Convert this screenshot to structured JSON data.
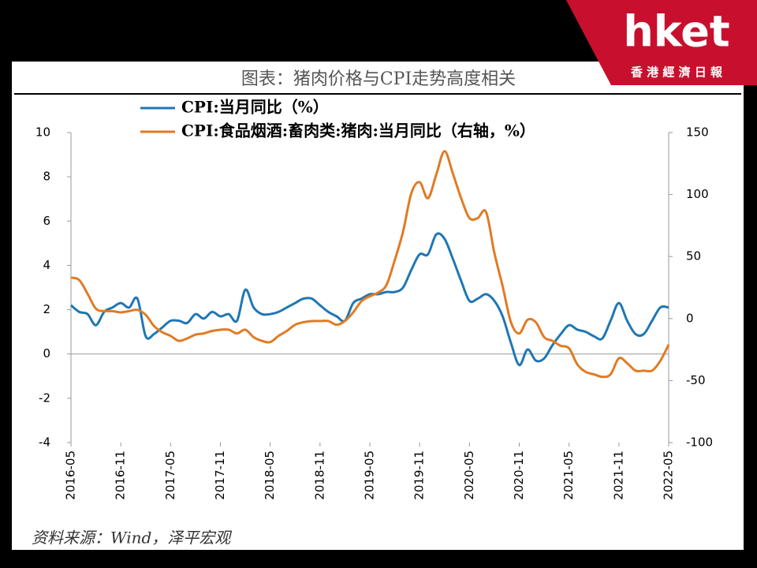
{
  "chart_data": {
    "type": "line",
    "title": "图表：猪肉价格与CPI走势高度相关",
    "source": "资料来源：Wind，泽平宏观",
    "logo": {
      "brand": "hket",
      "name": "香 港 經 濟 日 報"
    },
    "categories": [
      "2016-05",
      null,
      null,
      null,
      null,
      null,
      "2016-11",
      null,
      null,
      null,
      null,
      null,
      "2017-05",
      null,
      null,
      null,
      null,
      null,
      "2017-11",
      null,
      null,
      null,
      null,
      null,
      "2018-05",
      null,
      null,
      null,
      null,
      null,
      "2018-11",
      null,
      null,
      null,
      null,
      null,
      "2019-05",
      null,
      null,
      null,
      null,
      null,
      "2019-11",
      null,
      null,
      null,
      null,
      null,
      "2020-05",
      null,
      null,
      null,
      null,
      null,
      "2020-11",
      null,
      null,
      null,
      null,
      null,
      "2021-05",
      null,
      null,
      null,
      null,
      null,
      "2021-11",
      null,
      null,
      null,
      null,
      null,
      "2022-05"
    ],
    "series": [
      {
        "name": "CPI:当月同比（%）",
        "color": "#1f77b4",
        "values": [
          2.2,
          1.9,
          1.8,
          1.3,
          1.9,
          2.1,
          2.3,
          2.1,
          2.5,
          0.8,
          0.9,
          1.2,
          1.5,
          1.5,
          1.4,
          1.8,
          1.6,
          1.9,
          1.7,
          1.8,
          1.5,
          2.9,
          2.1,
          1.8,
          1.8,
          1.9,
          2.1,
          2.3,
          2.5,
          2.5,
          2.2,
          1.9,
          1.7,
          1.5,
          2.3,
          2.5,
          2.7,
          2.7,
          2.8,
          2.8,
          3.0,
          3.8,
          4.5,
          4.5,
          5.4,
          5.2,
          4.3,
          3.3,
          2.4,
          2.5,
          2.7,
          2.4,
          1.7,
          0.5,
          -0.5,
          0.2,
          -0.3,
          -0.2,
          0.4,
          0.9,
          1.3,
          1.1,
          1.0,
          0.8,
          0.7,
          1.5,
          2.3,
          1.5,
          0.9,
          0.9,
          1.5,
          2.1,
          2.1
        ]
      },
      {
        "name": "CPI:食品烟酒:畜肉类:猪肉:当月同比（右轴，%）",
        "color": "#e07b24",
        "axis": "y2",
        "values": [
          33,
          31,
          20,
          8,
          6,
          6,
          5,
          6,
          7,
          3,
          -6,
          -11,
          -14,
          -18,
          -16,
          -13,
          -12,
          -10,
          -9,
          -9,
          -12,
          -9,
          -15,
          -18,
          -19,
          -14,
          -10,
          -5,
          -3,
          -2,
          -2,
          -2,
          -5,
          -2,
          5,
          14,
          18,
          21,
          27,
          47,
          70,
          101,
          110,
          97,
          116,
          135,
          117,
          97,
          81,
          81,
          86,
          53,
          26,
          -3,
          -12,
          -1,
          -3,
          -15,
          -18,
          -22,
          -24,
          -37,
          -43,
          -45,
          -47,
          -45,
          -32,
          -36,
          -42,
          -42,
          -42,
          -34,
          -21
        ]
      }
    ],
    "ylim": [
      -4,
      10
    ],
    "yticks": [
      10,
      8,
      6,
      4,
      2,
      0,
      -2,
      -4
    ],
    "y2lim": [
      -100,
      150
    ],
    "y2ticks": [
      150,
      100,
      50,
      0,
      -50,
      -100
    ]
  }
}
